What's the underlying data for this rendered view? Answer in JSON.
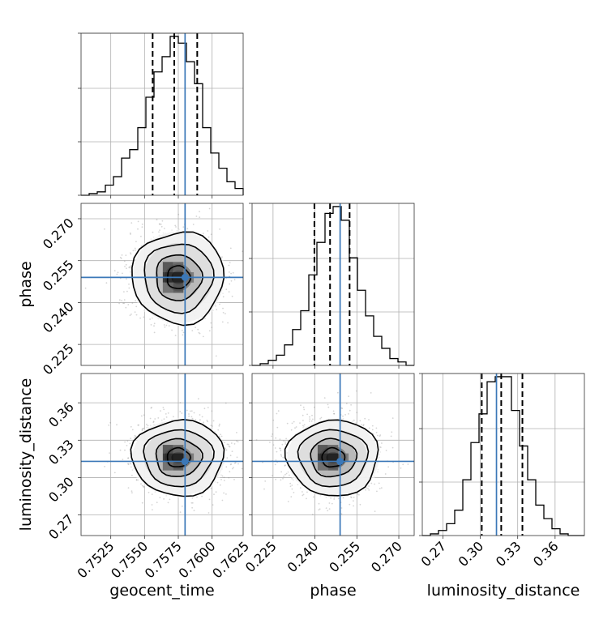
{
  "chart_data": {
    "type": "corner",
    "parameters": [
      "geocent_time",
      "phase",
      "luminosity_distance"
    ],
    "truths": {
      "geocent_time": 0.758,
      "phase": 0.249,
      "luminosity_distance": 0.313
    },
    "axes": {
      "geocent_time": {
        "range": [
          0.7503,
          0.7623
        ],
        "ticks": [
          0.7525,
          0.755,
          0.7575,
          0.76,
          0.7625
        ],
        "tick_labels": [
          "0.7525",
          "0.7550",
          "0.7575",
          "0.7600",
          "0.7625"
        ]
      },
      "phase": {
        "range": [
          0.2175,
          0.2755
        ],
        "ticks": [
          0.225,
          0.24,
          0.255,
          0.27
        ],
        "tick_labels": [
          "0.225",
          "0.240",
          "0.255",
          "0.270"
        ]
      },
      "luminosity_distance": {
        "range": [
          0.2535,
          0.3835
        ],
        "ticks": [
          0.27,
          0.3,
          0.33,
          0.36
        ],
        "tick_labels": [
          "0.27",
          "0.30",
          "0.33",
          "0.36"
        ]
      }
    },
    "marginals": [
      {
        "parameter": "geocent_time",
        "bin_edges": [
          0.7503,
          0.7509,
          0.7515,
          0.7521,
          0.7527,
          0.7533,
          0.7539,
          0.7545,
          0.7551,
          0.7557,
          0.7563,
          0.7569,
          0.7575,
          0.7581,
          0.7587,
          0.7593,
          0.7599,
          0.7605,
          0.7611,
          0.7617,
          0.7623
        ],
        "counts": [
          0,
          1,
          2,
          6,
          11,
          22,
          27,
          40,
          58,
          73,
          82,
          94,
          90,
          79,
          66,
          40,
          25,
          16,
          8,
          4
        ],
        "quantiles": [
          0.7556,
          0.7572,
          0.7589
        ]
      },
      {
        "parameter": "phase",
        "bin_edges": [
          0.2175,
          0.2204,
          0.2233,
          0.2262,
          0.2291,
          0.232,
          0.2349,
          0.2378,
          0.2407,
          0.2436,
          0.2465,
          0.2494,
          0.2523,
          0.2552,
          0.2581,
          0.261,
          0.2639,
          0.2668,
          0.2697,
          0.2726,
          0.2755
        ],
        "counts": [
          0,
          1,
          3,
          6,
          12,
          21,
          32,
          53,
          72,
          89,
          93,
          85,
          63,
          44,
          29,
          17,
          10,
          4,
          2,
          0
        ],
        "quantiles": [
          0.2398,
          0.2454,
          0.2524
        ]
      },
      {
        "parameter": "luminosity_distance",
        "bin_edges": [
          0.2535,
          0.26,
          0.2665,
          0.273,
          0.2795,
          0.286,
          0.2925,
          0.299,
          0.3055,
          0.312,
          0.3185,
          0.325,
          0.3315,
          0.338,
          0.3445,
          0.351,
          0.3575,
          0.364,
          0.3705,
          0.377,
          0.3835
        ],
        "counts": [
          0,
          1,
          3,
          7,
          15,
          33,
          55,
          72,
          91,
          94,
          94,
          74,
          53,
          33,
          18,
          10,
          4,
          1,
          0,
          0
        ],
        "quantiles": [
          0.3012,
          0.3168,
          0.3338
        ]
      }
    ],
    "joint": [
      {
        "x": "geocent_time",
        "y": "phase",
        "center": [
          0.7575,
          0.249
        ],
        "sd": [
          0.0017,
          0.0082
        ]
      },
      {
        "x": "geocent_time",
        "y": "luminosity_distance",
        "center": [
          0.7575,
          0.316
        ],
        "sd": [
          0.0017,
          0.0152
        ]
      },
      {
        "x": "phase",
        "y": "luminosity_distance",
        "center": [
          0.2465,
          0.316
        ],
        "sd": [
          0.0082,
          0.0152
        ]
      }
    ],
    "grid": true,
    "legend": "none"
  }
}
